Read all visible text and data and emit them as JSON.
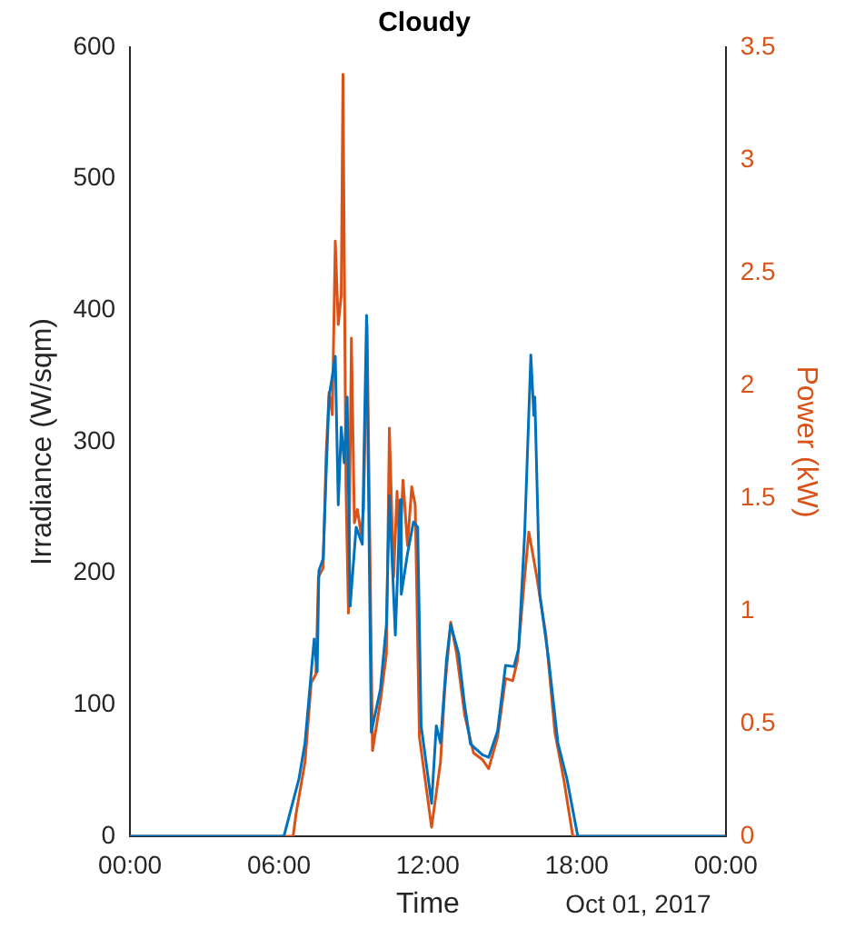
{
  "chart_data": {
    "type": "line",
    "title": "Cloudy",
    "xlabel": "Time",
    "ylabel": "Irradiance (W/sqm)",
    "y2label": "Power (kW)",
    "annotations": [
      "Oct 01, 2017"
    ],
    "xlim": [
      0,
      24
    ],
    "xticks": [
      {
        "value": 0,
        "label": "00:00"
      },
      {
        "value": 6,
        "label": "06:00"
      },
      {
        "value": 12,
        "label": "12:00"
      },
      {
        "value": 18,
        "label": "18:00"
      },
      {
        "value": 24,
        "label": "00:00"
      }
    ],
    "ylim": [
      0,
      600
    ],
    "yticks": [
      0,
      100,
      200,
      300,
      400,
      500,
      600
    ],
    "y2lim": [
      0,
      3.5
    ],
    "y2ticks": [
      0,
      0.5,
      1,
      1.5,
      2,
      2.5,
      3,
      3.5
    ],
    "grid": false,
    "legend": false,
    "marker": "none",
    "line_style": "solid",
    "series": [
      {
        "color": "#0072bd",
        "x": [
          0,
          6.2,
          6.45,
          6.81,
          7.05,
          7.42,
          7.54,
          7.61,
          7.78,
          7.9,
          8.02,
          8.27,
          8.39,
          8.51,
          8.63,
          8.75,
          8.87,
          9.11,
          9.36,
          9.53,
          9.72,
          10.09,
          10.33,
          10.45,
          10.69,
          10.89,
          10.93,
          11.18,
          11.42,
          11.59,
          11.73,
          12.15,
          12.34,
          12.51,
          12.75,
          12.92,
          13.24,
          13.48,
          13.72,
          14.2,
          14.45,
          14.81,
          15.13,
          15.47,
          15.66,
          15.9,
          16.15,
          16.27,
          16.31,
          16.51,
          16.87,
          17.24,
          17.6,
          18.04,
          24
        ],
        "values": [
          0,
          0,
          18,
          44,
          71,
          150,
          125,
          202,
          211,
          275,
          334,
          365,
          252,
          311,
          284,
          334,
          175,
          235,
          222,
          396,
          79,
          112,
          161,
          259,
          153,
          256,
          184,
          215,
          239,
          235,
          84,
          25,
          84,
          71,
          134,
          161,
          139,
          100,
          70,
          62,
          60,
          80,
          130,
          129,
          143,
          230,
          366,
          320,
          334,
          184,
          134,
          71,
          44,
          0,
          0
        ]
      },
      {
        "color": "#d95319",
        "axis": "y2",
        "x": [
          0,
          6.57,
          6.69,
          7.05,
          7.3,
          7.49,
          7.59,
          7.78,
          7.9,
          8.02,
          8.15,
          8.27,
          8.39,
          8.51,
          8.58,
          8.7,
          8.8,
          8.92,
          9.04,
          9.16,
          9.31,
          9.41,
          9.55,
          9.77,
          10.09,
          10.33,
          10.45,
          10.62,
          10.76,
          10.86,
          11.0,
          11.18,
          11.35,
          11.49,
          11.66,
          12.15,
          12.51,
          12.68,
          12.92,
          13.16,
          13.48,
          13.84,
          14.2,
          14.45,
          14.81,
          15.13,
          15.42,
          15.61,
          15.9,
          16.07,
          16.39,
          16.76,
          17.12,
          17.48,
          17.84,
          24
        ],
        "values": [
          0,
          0,
          0.1,
          0.33,
          0.68,
          0.72,
          1.15,
          1.19,
          1.69,
          1.97,
          1.87,
          2.64,
          2.27,
          2.4,
          3.38,
          1.55,
          0.99,
          2.21,
          1.39,
          1.45,
          1.34,
          1.45,
          2.27,
          0.38,
          0.6,
          0.81,
          1.81,
          1.15,
          1.53,
          1.26,
          1.58,
          1.29,
          1.55,
          1.47,
          0.44,
          0.04,
          0.33,
          0.65,
          0.95,
          0.81,
          0.54,
          0.37,
          0.34,
          0.3,
          0.44,
          0.7,
          0.69,
          0.78,
          1.15,
          1.35,
          1.15,
          0.89,
          0.46,
          0.25,
          0,
          0
        ]
      }
    ]
  }
}
